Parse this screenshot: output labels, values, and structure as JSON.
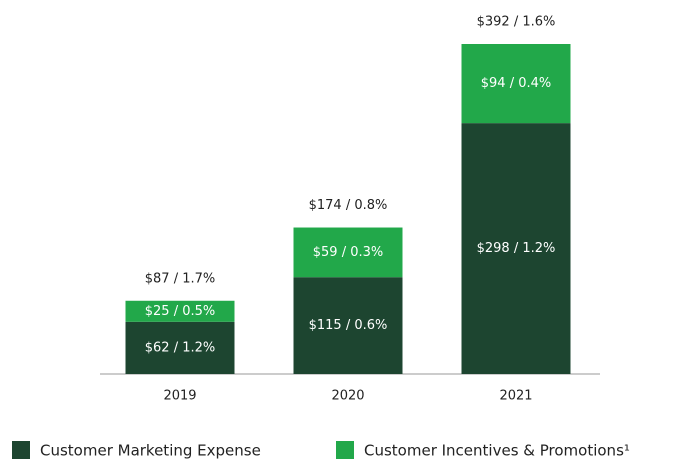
{
  "chart_data": {
    "type": "stacked_bar",
    "categories": [
      "2019",
      "2020",
      "2021"
    ],
    "series": [
      {
        "name": "Customer Marketing Expense",
        "color": "#1d4530",
        "values": [
          62,
          115,
          298
        ],
        "value_labels": [
          "$62 / 1.2%",
          "$115 / 0.6%",
          "$298 / 1.2%"
        ]
      },
      {
        "name": "Customer Incentives & Promotions¹",
        "color": "#22a84a",
        "values": [
          25,
          59,
          94
        ],
        "value_labels": [
          "$25 / 0.5%",
          "$59 / 0.3%",
          "$94 / 0.4%"
        ]
      }
    ],
    "annotations": [
      "$87 / 1.7%",
      "$174 / 0.8%",
      "$392 / 1.6%"
    ],
    "legend": "bottom"
  }
}
